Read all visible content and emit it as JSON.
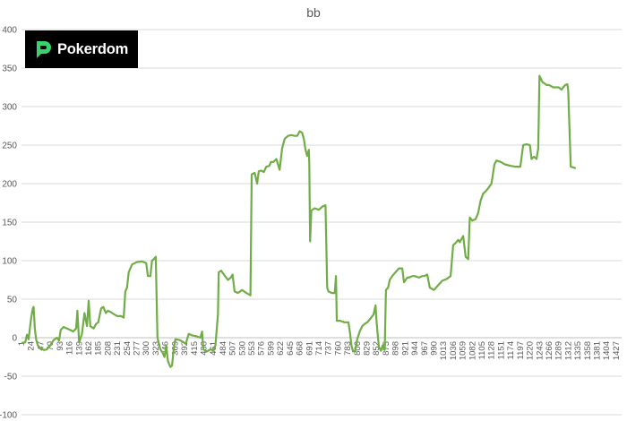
{
  "brand": {
    "name": "Pokerdom",
    "accent": "#3bd16f"
  },
  "chart_data": {
    "type": "line",
    "title": "bb",
    "xlabel": "",
    "ylabel": "",
    "ylim": [
      -100,
      400
    ],
    "yticks": [
      -100,
      -50,
      0,
      50,
      100,
      150,
      200,
      250,
      300,
      350,
      400
    ],
    "xlim": [
      1,
      1440
    ],
    "xticks": [
      1,
      24,
      47,
      70,
      93,
      116,
      139,
      162,
      185,
      208,
      231,
      254,
      277,
      300,
      323,
      346,
      369,
      392,
      415,
      438,
      461,
      484,
      507,
      530,
      553,
      576,
      599,
      622,
      645,
      668,
      691,
      714,
      737,
      760,
      783,
      806,
      829,
      852,
      875,
      898,
      921,
      944,
      967,
      990,
      1013,
      1036,
      1059,
      1082,
      1105,
      1128,
      1151,
      1174,
      1197,
      1220,
      1243,
      1266,
      1289,
      1312,
      1335,
      1358,
      1381,
      1404,
      1427
    ],
    "grid": true,
    "legend": "none",
    "series": [
      {
        "color": "#70ad47",
        "points": [
          [
            1,
            -7
          ],
          [
            10,
            -6
          ],
          [
            14,
            4
          ],
          [
            18,
            -2
          ],
          [
            24,
            25
          ],
          [
            28,
            38
          ],
          [
            30,
            40
          ],
          [
            33,
            12
          ],
          [
            36,
            -2
          ],
          [
            40,
            -10
          ],
          [
            47,
            -14
          ],
          [
            55,
            -16
          ],
          [
            62,
            -15
          ],
          [
            70,
            -10
          ],
          [
            78,
            -3
          ],
          [
            86,
            0
          ],
          [
            91,
            -4
          ],
          [
            95,
            10
          ],
          [
            102,
            14
          ],
          [
            110,
            12
          ],
          [
            118,
            10
          ],
          [
            125,
            8
          ],
          [
            132,
            12
          ],
          [
            135,
            35
          ],
          [
            139,
            -6
          ],
          [
            146,
            5
          ],
          [
            152,
            32
          ],
          [
            158,
            15
          ],
          [
            162,
            48
          ],
          [
            166,
            15
          ],
          [
            174,
            12
          ],
          [
            180,
            18
          ],
          [
            185,
            20
          ],
          [
            192,
            38
          ],
          [
            197,
            40
          ],
          [
            203,
            32
          ],
          [
            208,
            35
          ],
          [
            216,
            33
          ],
          [
            224,
            30
          ],
          [
            231,
            28
          ],
          [
            240,
            28
          ],
          [
            246,
            26
          ],
          [
            250,
            60
          ],
          [
            254,
            65
          ],
          [
            258,
            85
          ],
          [
            266,
            95
          ],
          [
            277,
            98
          ],
          [
            290,
            99
          ],
          [
            300,
            97
          ],
          [
            304,
            80
          ],
          [
            310,
            80
          ],
          [
            314,
            100
          ],
          [
            318,
            102
          ],
          [
            323,
            105
          ],
          [
            327,
            0
          ],
          [
            334,
            -15
          ],
          [
            340,
            -20
          ],
          [
            344,
            -25
          ],
          [
            348,
            -10
          ],
          [
            352,
            -30
          ],
          [
            358,
            -38
          ],
          [
            362,
            -36
          ],
          [
            366,
            -15
          ],
          [
            370,
            -2
          ],
          [
            380,
            -3
          ],
          [
            390,
            -6
          ],
          [
            395,
            -8
          ],
          [
            402,
            5
          ],
          [
            410,
            3
          ],
          [
            420,
            2
          ],
          [
            430,
            0
          ],
          [
            434,
            8
          ],
          [
            437,
            -15
          ],
          [
            445,
            -18
          ],
          [
            455,
            -15
          ],
          [
            461,
            -17
          ],
          [
            466,
            -10
          ],
          [
            472,
            30
          ],
          [
            474,
            85
          ],
          [
            480,
            87
          ],
          [
            489,
            80
          ],
          [
            496,
            75
          ],
          [
            503,
            78
          ],
          [
            507,
            82
          ],
          [
            512,
            60
          ],
          [
            520,
            58
          ],
          [
            530,
            62
          ],
          [
            540,
            58
          ],
          [
            550,
            55
          ],
          [
            553,
            212
          ],
          [
            560,
            214
          ],
          [
            566,
            200
          ],
          [
            570,
            216
          ],
          [
            576,
            217
          ],
          [
            582,
            215
          ],
          [
            588,
            222
          ],
          [
            595,
            223
          ],
          [
            599,
            228
          ],
          [
            605,
            228
          ],
          [
            612,
            232
          ],
          [
            620,
            218
          ],
          [
            626,
            246
          ],
          [
            632,
            258
          ],
          [
            640,
            262
          ],
          [
            648,
            263
          ],
          [
            656,
            262
          ],
          [
            662,
            262
          ],
          [
            668,
            268
          ],
          [
            674,
            266
          ],
          [
            678,
            258
          ],
          [
            682,
            244
          ],
          [
            686,
            236
          ],
          [
            688,
            240
          ],
          [
            690,
            244
          ],
          [
            691,
            225
          ],
          [
            693,
            125
          ],
          [
            696,
            165
          ],
          [
            704,
            168
          ],
          [
            714,
            166
          ],
          [
            722,
            170
          ],
          [
            730,
            172
          ],
          [
            734,
            65
          ],
          [
            737,
            60
          ],
          [
            745,
            58
          ],
          [
            752,
            58
          ],
          [
            755,
            80
          ],
          [
            757,
            22
          ],
          [
            765,
            22
          ],
          [
            775,
            20
          ],
          [
            785,
            20
          ],
          [
            789,
            5
          ],
          [
            792,
            -10
          ],
          [
            796,
            -18
          ],
          [
            801,
            -17
          ],
          [
            806,
            -2
          ],
          [
            812,
            8
          ],
          [
            818,
            15
          ],
          [
            824,
            18
          ],
          [
            830,
            20
          ],
          [
            838,
            25
          ],
          [
            845,
            30
          ],
          [
            850,
            42
          ],
          [
            852,
            24
          ],
          [
            855,
            5
          ],
          [
            858,
            -12
          ],
          [
            863,
            -17
          ],
          [
            867,
            -10
          ],
          [
            872,
            -16
          ],
          [
            875,
            62
          ],
          [
            880,
            65
          ],
          [
            884,
            75
          ],
          [
            890,
            80
          ],
          [
            898,
            85
          ],
          [
            906,
            90
          ],
          [
            914,
            90
          ],
          [
            918,
            72
          ],
          [
            926,
            78
          ],
          [
            930,
            78
          ],
          [
            938,
            80
          ],
          [
            944,
            80
          ],
          [
            954,
            78
          ],
          [
            962,
            80
          ],
          [
            967,
            80
          ],
          [
            974,
            82
          ],
          [
            980,
            65
          ],
          [
            990,
            62
          ],
          [
            1000,
            68
          ],
          [
            1010,
            74
          ],
          [
            1020,
            76
          ],
          [
            1030,
            80
          ],
          [
            1036,
            120
          ],
          [
            1042,
            123
          ],
          [
            1048,
            127
          ],
          [
            1052,
            124
          ],
          [
            1056,
            128
          ],
          [
            1060,
            132
          ],
          [
            1066,
            105
          ],
          [
            1072,
            102
          ],
          [
            1076,
            156
          ],
          [
            1082,
            152
          ],
          [
            1090,
            154
          ],
          [
            1096,
            162
          ],
          [
            1102,
            178
          ],
          [
            1108,
            187
          ],
          [
            1114,
            190
          ],
          [
            1120,
            194
          ],
          [
            1128,
            200
          ],
          [
            1135,
            225
          ],
          [
            1140,
            230
          ],
          [
            1151,
            228
          ],
          [
            1160,
            225
          ],
          [
            1174,
            223
          ],
          [
            1185,
            222
          ],
          [
            1197,
            222
          ],
          [
            1204,
            250
          ],
          [
            1212,
            251
          ],
          [
            1220,
            250
          ],
          [
            1224,
            232
          ],
          [
            1230,
            235
          ],
          [
            1236,
            232
          ],
          [
            1240,
            246
          ],
          [
            1243,
            340
          ],
          [
            1250,
            332
          ],
          [
            1260,
            328
          ],
          [
            1266,
            328
          ],
          [
            1276,
            325
          ],
          [
            1289,
            325
          ],
          [
            1296,
            322
          ],
          [
            1300,
            325
          ],
          [
            1305,
            328
          ],
          [
            1310,
            329
          ],
          [
            1312,
            320
          ],
          [
            1318,
            222
          ],
          [
            1330,
            220
          ]
        ]
      }
    ]
  }
}
